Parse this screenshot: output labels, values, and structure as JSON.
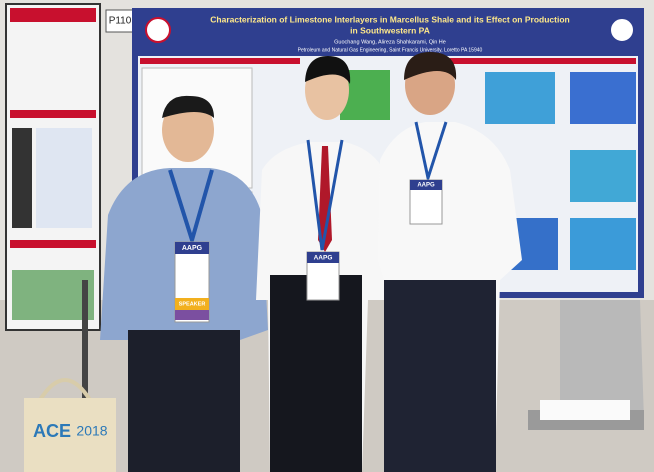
{
  "booth": "P110",
  "poster": {
    "title_lines": [
      "Characterization of Limestone Interlayers in Marcellus Shale and its Effect on Production",
      "in Southwestern PA"
    ],
    "authors": "Guochang Wang, Alireza Shahkarami, Qin He",
    "affiliation": "Petroleum and Natural Gas Engineering, Saint Francis University, Loretto PA 15940"
  },
  "badges": [
    "AAPG",
    "AAPG",
    "AAPG"
  ],
  "badge_role": "SPEAKER",
  "bag": [
    "ACE",
    "2018"
  ]
}
